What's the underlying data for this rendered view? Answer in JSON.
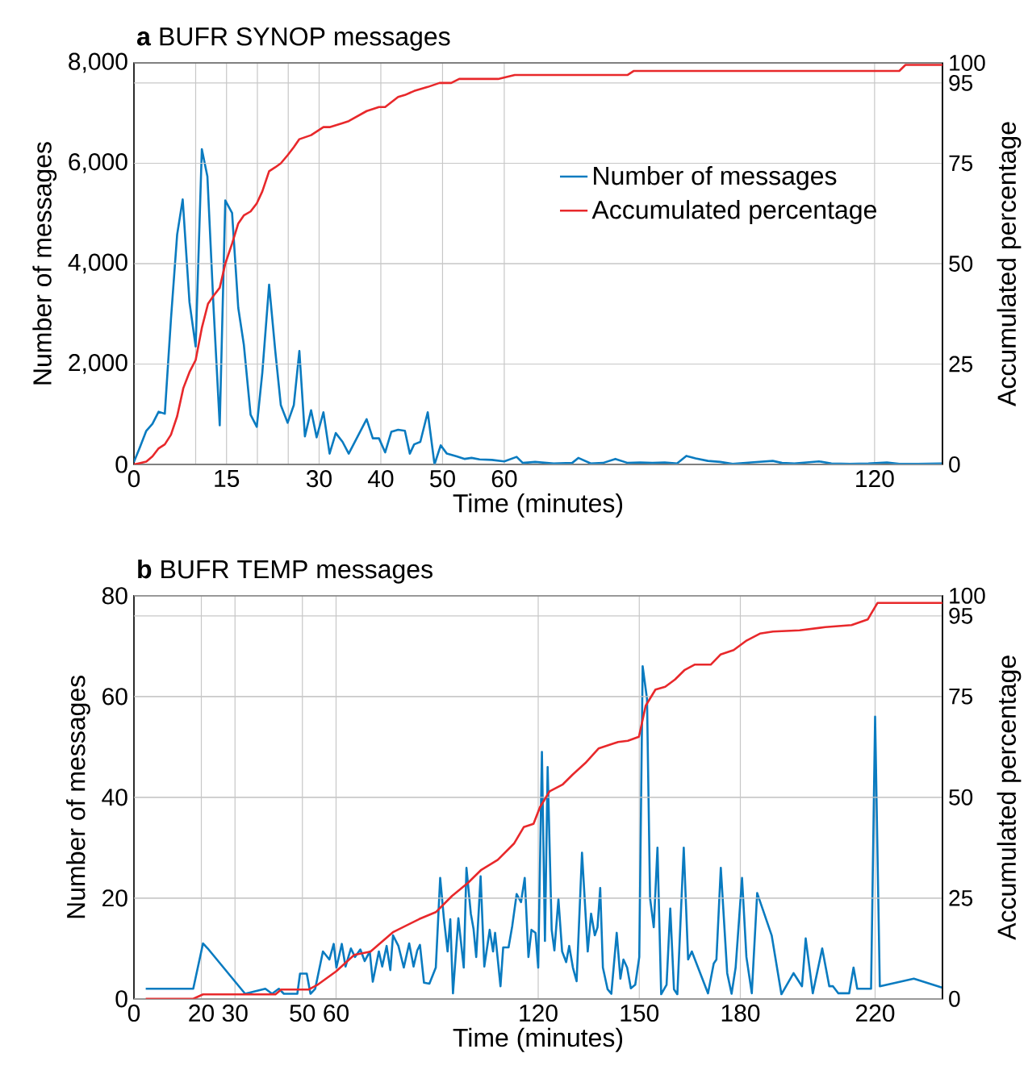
{
  "chart_data": [
    {
      "type": "line",
      "title": "**a** BUFR SYNOP messages",
      "xlabel": "Time (minutes)",
      "ylabel": "Number of messages",
      "y2label": "Accumulated percentage",
      "xlim": [
        0,
        131
      ],
      "xticks": [
        0,
        {
          "value": 10,
          "label": null
        },
        15,
        {
          "value": 20,
          "label": null
        },
        {
          "value": 25,
          "label": null
        },
        30,
        40,
        50,
        60,
        120
      ],
      "ylim": [
        0,
        8000
      ],
      "yticks": [
        {
          "value": 0,
          "label": "0"
        },
        {
          "value": 2000,
          "label": "2,000"
        },
        {
          "value": 4000,
          "label": "4,000"
        },
        {
          "value": 6000,
          "label": "6,000"
        },
        {
          "value": 8000,
          "label": "8,000"
        }
      ],
      "y2lim": [
        0,
        100
      ],
      "y2ticks": [
        0,
        25,
        50,
        75,
        95,
        100
      ],
      "grid": true,
      "legend": "right",
      "line_style": "solid",
      "marker": "none",
      "series": [
        {
          "name": "Number of messages",
          "color": "#0a7bc0",
          "x": [
            0,
            0.9,
            2,
            3,
            4,
            5,
            6,
            7,
            7.9,
            9,
            10,
            11,
            11.9,
            12.9,
            13.9,
            14.8,
            15.9,
            16.9,
            17.8,
            18.9,
            19.9,
            20.8,
            21.9,
            22.9,
            23.8,
            24.9,
            25.9,
            26.8,
            27.7,
            28.7,
            29.6,
            30.7,
            31.7,
            32.7,
            33.8,
            34.8,
            37.7,
            38.7,
            39.7,
            40.7,
            41.7,
            42.8,
            43.9,
            44.7,
            45.4,
            46.4,
            47.6,
            48.7,
            49.7,
            50.7,
            52.3,
            53.6,
            54.7,
            56,
            58,
            60,
            62,
            63,
            65,
            68,
            71,
            72,
            74,
            76,
            78,
            80,
            82,
            84,
            86,
            88,
            89.5,
            91,
            93,
            95,
            97,
            100,
            103.5,
            105,
            107,
            111,
            113,
            116,
            119,
            122,
            124,
            127,
            131
          ],
          "values": [
            50,
            320,
            670,
            810,
            1050,
            1010,
            2900,
            4580,
            5280,
            3230,
            2350,
            6280,
            5740,
            3120,
            780,
            5260,
            5010,
            3120,
            2390,
            990,
            750,
            1830,
            3580,
            2260,
            1180,
            830,
            1180,
            2260,
            560,
            1080,
            540,
            1040,
            215,
            625,
            450,
            215,
            900,
            520,
            520,
            240,
            650,
            690,
            670,
            215,
            400,
            450,
            1040,
            0,
            380,
            215,
            160,
            110,
            130,
            100,
            90,
            60,
            150,
            30,
            50,
            20,
            30,
            130,
            20,
            30,
            110,
            30,
            40,
            30,
            40,
            20,
            170,
            120,
            70,
            50,
            10,
            40,
            70,
            30,
            20,
            60,
            20,
            10,
            20,
            40,
            10,
            10,
            20
          ]
        },
        {
          "name": "Accumulated percentage",
          "color": "#e8282b",
          "axis": "y2",
          "x": [
            0,
            0.9,
            2,
            3,
            4,
            5,
            6,
            7,
            8,
            9,
            10,
            11,
            12,
            12.9,
            13.9,
            14.8,
            15.9,
            16.9,
            17.8,
            18.9,
            19.9,
            20.8,
            21.9,
            22.9,
            23.8,
            24.9,
            25.9,
            26.8,
            28.7,
            30.7,
            31.7,
            33.8,
            34.8,
            37.7,
            39.7,
            40.7,
            42.8,
            43.9,
            45.4,
            47.6,
            49.5,
            51.4,
            52.7,
            59,
            61.7,
            80,
            81,
            124,
            125,
            131
          ],
          "values": [
            0,
            0.3,
            0.7,
            2,
            4,
            5,
            7.4,
            12,
            19,
            23,
            26,
            34,
            40,
            42,
            44,
            50,
            55,
            60,
            62,
            63,
            65,
            68,
            73,
            74,
            75,
            77,
            79,
            81,
            82,
            84,
            84,
            85,
            85.5,
            88,
            89,
            89,
            91.5,
            92,
            93,
            94,
            95,
            95,
            96,
            96,
            97,
            97,
            98,
            98,
            99.5,
            99.5
          ]
        }
      ]
    },
    {
      "type": "line",
      "title": "**b** BUFR TEMP messages",
      "xlabel": "Time (minutes)",
      "ylabel": "Number of messages",
      "y2label": "Accumulated percentage",
      "xlim": [
        0,
        240
      ],
      "xticks": [
        0,
        20,
        30,
        50,
        60,
        120,
        150,
        180,
        220
      ],
      "ylim": [
        0,
        80
      ],
      "yticks": [
        0,
        20,
        40,
        60,
        80
      ],
      "y2lim": [
        0,
        100
      ],
      "y2ticks": [
        0,
        25,
        50,
        75,
        95,
        100
      ],
      "grid": true,
      "line_style": "solid",
      "marker": "none",
      "series": [
        {
          "color": "#0a7bc0",
          "x": [
            3.5,
            17.6,
            20.5,
            21.9,
            33,
            39,
            41,
            43,
            44.5,
            48.5,
            49.3,
            51.3,
            52.4,
            53.8,
            56.1,
            58,
            59.3,
            60.1,
            61.7,
            62.8,
            64.4,
            65.6,
            67.2,
            68.5,
            70,
            70.9,
            72.7,
            73.7,
            75,
            76.1,
            76.9,
            78.5,
            80.1,
            81.7,
            83,
            84.1,
            84.9,
            86.1,
            87.7,
            89.6,
            90.9,
            92,
            93.1,
            93.9,
            94.7,
            96.3,
            97.9,
            98.7,
            100,
            100.8,
            101.6,
            102.9,
            104,
            105.6,
            106.6,
            107.2,
            108.8,
            109.6,
            111.2,
            112.3,
            113.6,
            114.9,
            116,
            117.1,
            118,
            119.2,
            120,
            121.1,
            122,
            122.8,
            124,
            124.8,
            126,
            127.1,
            128.3,
            129.2,
            130.3,
            131.4,
            133,
            134.7,
            135.7,
            136.8,
            137.6,
            138.4,
            139.2,
            140.6,
            141.7,
            143.3,
            144.4,
            145.3,
            146.4,
            147.5,
            148.8,
            150,
            151,
            152.3,
            153.2,
            154.3,
            155.4,
            156.5,
            158.1,
            159.2,
            160.3,
            161.3,
            163.2,
            164.5,
            165.6,
            170.4,
            172.1,
            172.9,
            174.2,
            176.1,
            177.4,
            178.6,
            180.5,
            181.8,
            183.4,
            185,
            189.3,
            192.2,
            195.8,
            198.3,
            199.4,
            201.5,
            204.3,
            206.4,
            207.5,
            209.1,
            212.3,
            213.6,
            214.7,
            218.8,
            220,
            221.4,
            231.5,
            240
          ],
          "values": [
            2,
            2,
            11,
            10,
            1,
            2,
            1,
            2,
            1,
            1,
            5,
            5,
            1,
            2,
            9.4,
            7.8,
            10.9,
            6.2,
            10.9,
            6.4,
            10,
            8.3,
            9.8,
            7.5,
            9.4,
            3.4,
            9.4,
            6.4,
            10.5,
            5.7,
            12.6,
            10.5,
            6.2,
            11,
            6.4,
            9.6,
            10.7,
            3.2,
            3,
            6.2,
            24,
            16,
            9.4,
            15.8,
            1.1,
            16,
            6.2,
            26,
            16.9,
            13.9,
            8.3,
            24.3,
            6.4,
            13.7,
            9.4,
            13.1,
            2.5,
            10.2,
            10.2,
            14.5,
            20.8,
            19.2,
            24,
            8.3,
            13.7,
            13.1,
            6.2,
            49,
            11.5,
            46,
            13.7,
            9.6,
            19.8,
            9.4,
            7.3,
            10.5,
            6.2,
            3.5,
            29,
            9.4,
            16.9,
            12.6,
            14.2,
            22,
            6.2,
            1.9,
            1,
            13.1,
            4,
            7.8,
            6.2,
            2.1,
            2.8,
            8.3,
            66,
            59.5,
            20,
            14.2,
            30,
            0.9,
            2.8,
            17.9,
            1.9,
            0.9,
            30,
            7.8,
            9.4,
            1.1,
            7,
            7.8,
            26,
            5.1,
            1,
            6.2,
            24,
            8.3,
            1.1,
            21,
            12.6,
            0.9,
            5.1,
            2.5,
            12,
            1.1,
            10,
            2.5,
            2.5,
            1.1,
            1.1,
            6.2,
            2,
            2,
            56,
            2.5,
            4,
            2.2
          ]
        },
        {
          "color": "#e8282b",
          "axis": "y2",
          "x": [
            3.5,
            17.6,
            20.5,
            42,
            43.7,
            51.8,
            54.7,
            60,
            65.4,
            70.2,
            77,
            84.7,
            89.6,
            94.4,
            99.2,
            103.1,
            108,
            112.8,
            115.7,
            118.6,
            120.5,
            123.4,
            127.3,
            130.2,
            134,
            137.9,
            140.8,
            143.7,
            146.6,
            149.9,
            151.9,
            154.8,
            157.7,
            160.6,
            163.5,
            166.4,
            171.2,
            174.1,
            178,
            181.9,
            185.8,
            189.7,
            197.6,
            205.2,
            213,
            217.8,
            220.7,
            240
          ],
          "values": [
            0,
            0,
            1.1,
            1.1,
            2.3,
            2.3,
            3.6,
            6.8,
            10.9,
            11.7,
            16.6,
            19.8,
            21.5,
            25.5,
            28.8,
            32,
            34.5,
            38.5,
            42.6,
            43.4,
            47.5,
            51.5,
            53.2,
            55.6,
            58.5,
            62.1,
            62.9,
            63.7,
            64,
            65,
            72.7,
            76.7,
            77.4,
            79.2,
            81.6,
            82.9,
            82.9,
            85.4,
            86.5,
            88.9,
            90.6,
            91.1,
            91.4,
            92.2,
            92.7,
            94.1,
            98.2,
            98.2
          ]
        }
      ]
    }
  ]
}
